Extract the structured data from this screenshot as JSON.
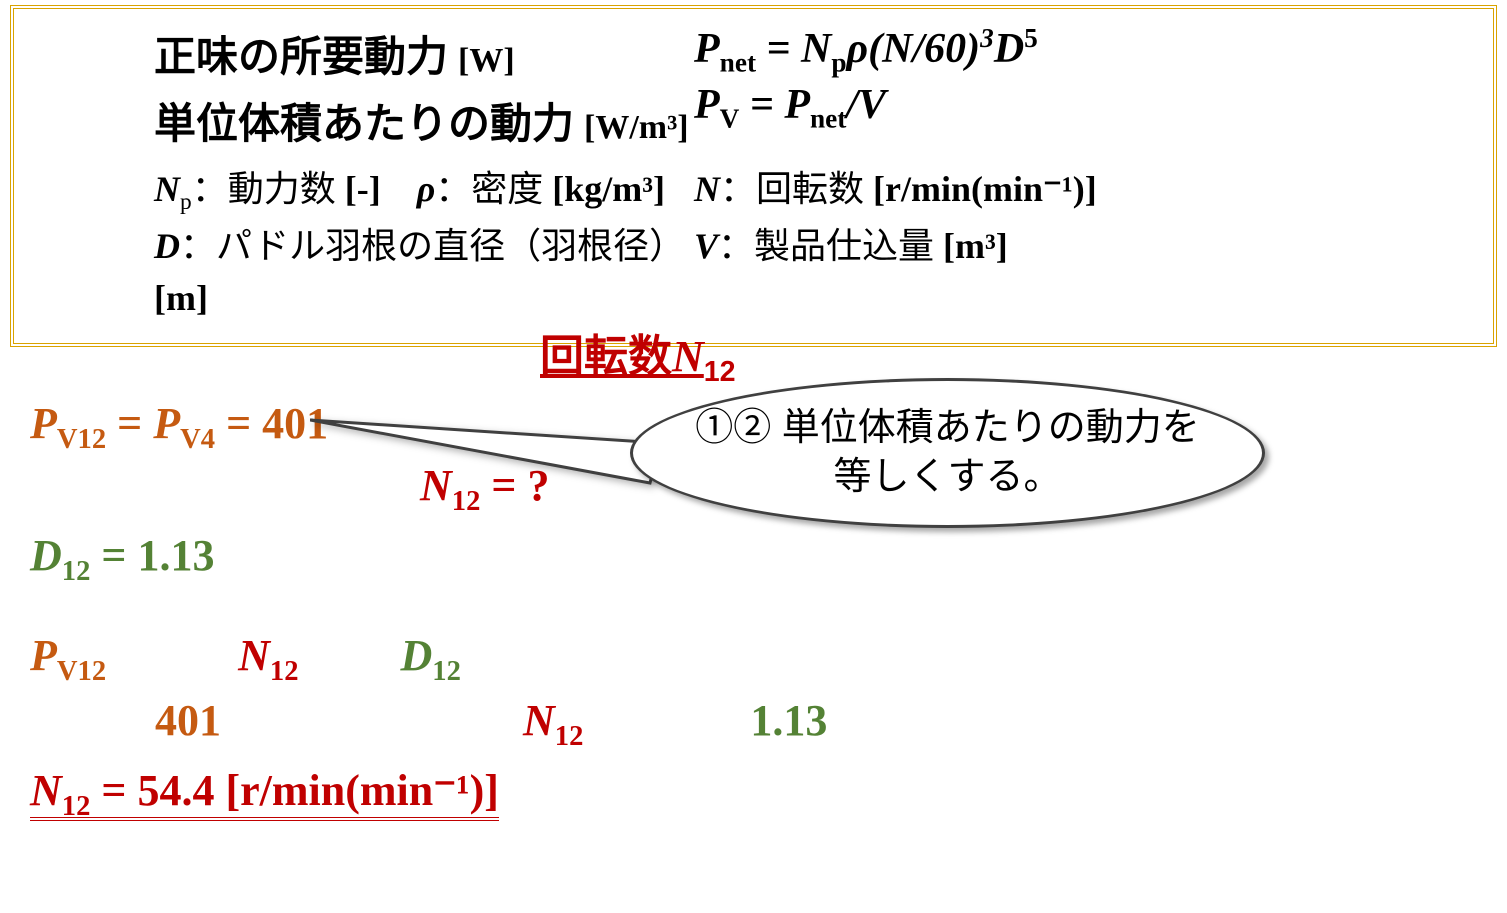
{
  "box": {
    "row1_label": "正味の所要動力",
    "row1_unit": "[W]",
    "row1_eq_html": "<span class='dvar'>P</span><span class='sub'>net</span> = <span class='dvar'>N</span><span class='sub'>p</span><span class='dvar'>ρ</span>(<span class='dvar'>N</span>/60)<span class='sup'>3</span><span class='dvar'>D</span><span class='sup' style='font-style:normal'>5</span>",
    "row2_label": "単位体積あたりの動力",
    "row2_unit": "[W/m³]",
    "row2_eq_html": "<span class='dvar'>P</span><span class='sub'>V</span> = <span class='dvar'>P</span><span class='sub'>net</span>/<span class='dvar'>V</span>",
    "def1_html": "<span class='dvar'>N</span><span class='sub'>p</span>：動力数 <b>[-]</b>&nbsp;&nbsp;&nbsp;&nbsp;<span class='dvar'>ρ</span>：密度 <b>[kg/m³]</b>",
    "def1b_html": "<span class='dvar'>N</span>：回転数 <b>[r/min(min⁻¹)]</b>",
    "def2_html": "<span class='dvar'>D</span>：パドル羽根の直径（羽根径）<b>[m]</b>",
    "def2b_html": "<span class='dvar'>V</span>：製品仕込量 <b>[m³]</b>"
  },
  "title_html": "回転数<span class='ital'>N</span><span class='sub'>12</span>",
  "eq_pv": "P",
  "eq_pv_sub": "V12",
  "eq_pv4_sub": "V4",
  "val_401": "401",
  "n12": "N",
  "n12_sub": "12",
  "n12_q": " = ?",
  "d12": "D",
  "d12_sub": "12",
  "d12_val": " = 1.13",
  "val_113": "1.13",
  "result_html": "<span class='ital'>N</span><span class='sub'>12</span> = 54.4 <span style='font-style:normal'>[r/min(min⁻¹)]</span>",
  "callout_text": "①② 単位体積あたりの動力を等しくする。",
  "colors": {
    "box_border": "#d9a300",
    "orange": "#c55a11",
    "red": "#c00000",
    "green": "#548235",
    "callout_border": "#404040",
    "background": "#ffffff",
    "text": "#000000"
  },
  "fonts": {
    "serif": "Times New Roman",
    "sans": "MS Gothic",
    "base_size_pt": 32
  }
}
